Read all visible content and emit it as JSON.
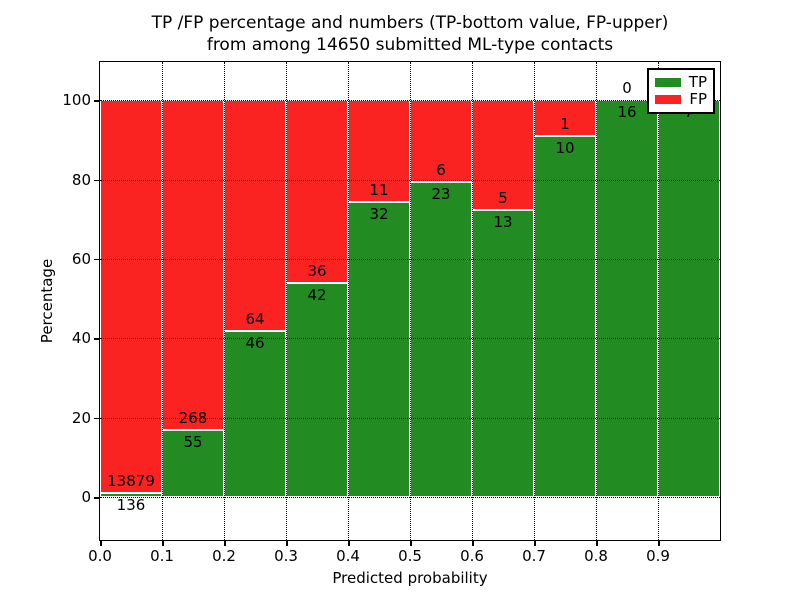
{
  "chart_data": {
    "type": "bar",
    "stacked": true,
    "title_line1": "TP /FP percentage and numbers (TP-bottom value, FP-upper)",
    "title_line2": "from among 14650 submitted ML-type contacts",
    "xlabel": "Predicted probability",
    "ylabel": "Percentage",
    "total_contacts": 14650,
    "xlim": [
      0.0,
      1.0
    ],
    "ylim": [
      -10.8,
      109.6
    ],
    "bin_width": 0.1,
    "bin_starts": [
      0.0,
      0.1,
      0.2,
      0.3,
      0.4,
      0.5,
      0.6,
      0.7,
      0.8,
      0.9
    ],
    "series": [
      {
        "name": "TP",
        "color": "#228B22",
        "counts": [
          136,
          55,
          46,
          42,
          32,
          23,
          13,
          10,
          16,
          7
        ]
      },
      {
        "name": "FP",
        "color": "#FB2222",
        "counts": [
          13879,
          268,
          64,
          36,
          11,
          6,
          5,
          1,
          0,
          0
        ]
      }
    ],
    "xticks": [
      0.0,
      0.1,
      0.2,
      0.3,
      0.4,
      0.5,
      0.6,
      0.7,
      0.8,
      0.9
    ],
    "yticks": [
      0,
      20,
      40,
      60,
      80,
      100
    ],
    "grid": "dotted",
    "legend_position": "upper right",
    "bar_edge_color": "#FFFFFF"
  }
}
